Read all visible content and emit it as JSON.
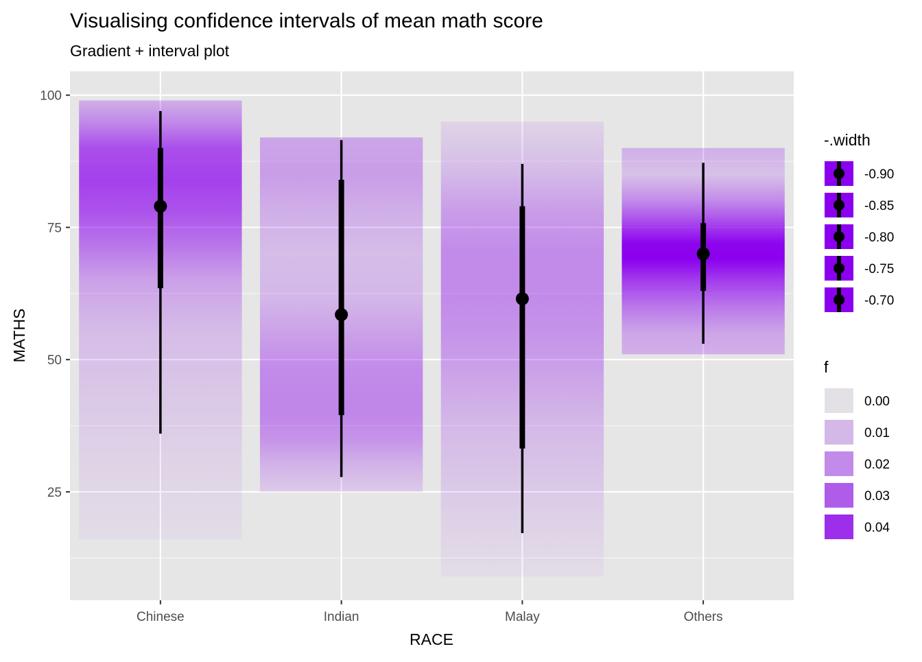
{
  "chart_data": {
    "type": "interval",
    "title": "Visualising confidence intervals of mean math score",
    "subtitle": "Gradient + interval plot",
    "xlabel": "RACE",
    "ylabel": "MATHS",
    "ylim": [
      4.5,
      104.5
    ],
    "yticks": [
      25,
      50,
      75,
      100
    ],
    "ytick_labels": [
      "25",
      "50",
      "75",
      "100"
    ],
    "categories": [
      "Chinese",
      "Indian",
      "Malay",
      "Others"
    ],
    "grid": true,
    "panel_color": "#e6e6e6",
    "accent_color": "#8b00ee",
    "gradients": [
      {
        "category": "Chinese",
        "ymin": 16,
        "ymax": 99,
        "stops": [
          [
            16,
            0.002
          ],
          [
            30,
            0.004
          ],
          [
            45,
            0.007
          ],
          [
            55,
            0.009
          ],
          [
            65,
            0.015
          ],
          [
            72,
            0.025
          ],
          [
            78,
            0.032
          ],
          [
            84,
            0.036
          ],
          [
            90,
            0.033
          ],
          [
            95,
            0.02
          ],
          [
            99,
            0.012
          ]
        ]
      },
      {
        "category": "Indian",
        "ymin": 25,
        "ymax": 92,
        "stops": [
          [
            25,
            0.006
          ],
          [
            30,
            0.011
          ],
          [
            35,
            0.018
          ],
          [
            40,
            0.021
          ],
          [
            48,
            0.02
          ],
          [
            55,
            0.015
          ],
          [
            62,
            0.01
          ],
          [
            70,
            0.009
          ],
          [
            78,
            0.012
          ],
          [
            85,
            0.016
          ],
          [
            92,
            0.014
          ]
        ]
      },
      {
        "category": "Malay",
        "ymin": 9,
        "ymax": 95,
        "stops": [
          [
            9,
            0.002
          ],
          [
            18,
            0.004
          ],
          [
            28,
            0.007
          ],
          [
            38,
            0.01
          ],
          [
            48,
            0.015
          ],
          [
            55,
            0.018
          ],
          [
            62,
            0.02
          ],
          [
            70,
            0.02
          ],
          [
            78,
            0.016
          ],
          [
            86,
            0.009
          ],
          [
            95,
            0.004
          ]
        ]
      },
      {
        "category": "Others",
        "ymin": 51,
        "ymax": 90,
        "stops": [
          [
            51,
            0.012
          ],
          [
            55,
            0.014
          ],
          [
            60,
            0.024
          ],
          [
            65,
            0.037
          ],
          [
            69,
            0.05
          ],
          [
            72,
            0.049
          ],
          [
            76,
            0.034
          ],
          [
            80,
            0.02
          ],
          [
            85,
            0.008
          ],
          [
            90,
            0.012
          ]
        ]
      }
    ],
    "intervals": [
      {
        "category": "Chinese",
        "point": 79,
        "inner": [
          63.5,
          90
        ],
        "outer": [
          36,
          97
        ]
      },
      {
        "category": "Indian",
        "point": 58.5,
        "inner": [
          39.5,
          84
        ],
        "outer": [
          27.8,
          91.5
        ]
      },
      {
        "category": "Malay",
        "point": 61.5,
        "inner": [
          33.2,
          79
        ],
        "outer": [
          17.2,
          87
        ]
      },
      {
        "category": "Others",
        "point": 70,
        "inner": [
          63,
          75.8
        ],
        "outer": [
          53,
          87.2
        ]
      }
    ],
    "legend_width": {
      "title": "-.width",
      "placement": "right",
      "items": [
        "-0.90",
        "-0.85",
        "-0.80",
        "-0.75",
        "-0.70"
      ]
    },
    "legend_f": {
      "title": "f",
      "placement": "right",
      "items": [
        {
          "label": "0.00",
          "value": 0.0
        },
        {
          "label": "0.01",
          "value": 0.01
        },
        {
          "label": "0.02",
          "value": 0.02
        },
        {
          "label": "0.03",
          "value": 0.03
        },
        {
          "label": "0.04",
          "value": 0.04
        }
      ]
    }
  }
}
